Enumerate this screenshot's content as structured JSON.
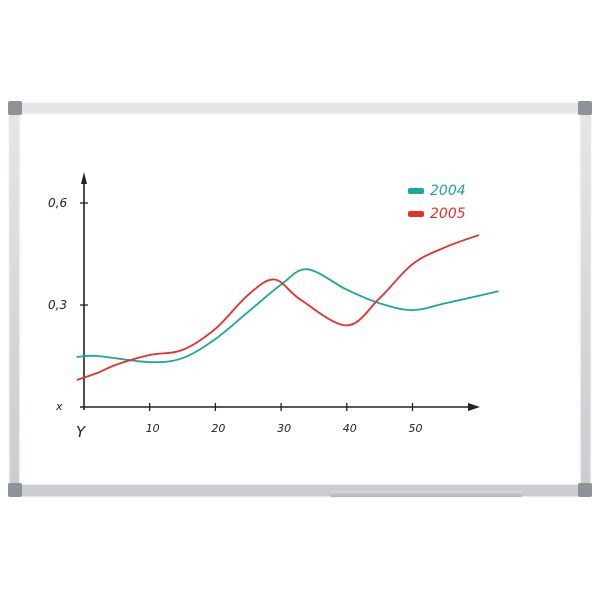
{
  "chart_data": {
    "type": "line",
    "title": "",
    "xlabel": "Y",
    "ylabel": "x",
    "xlim": [
      0,
      60
    ],
    "ylim": [
      0,
      0.6
    ],
    "x_ticks": [
      "10",
      "20",
      "30",
      "40",
      "50"
    ],
    "x_tick_values": [
      10,
      20,
      30,
      40,
      50
    ],
    "y_ticks": [
      "0,3",
      "0,6"
    ],
    "y_tick_values": [
      0.3,
      0.6
    ],
    "grid": false,
    "legend_position": "top-right",
    "series": [
      {
        "name": "2004",
        "color": "#1aa89a",
        "x": [
          -1,
          2,
          10,
          15,
          20,
          25,
          30,
          34,
          40,
          45,
          50,
          55,
          63
        ],
        "y": [
          0.147,
          0.15,
          0.132,
          0.144,
          0.2,
          0.28,
          0.36,
          0.405,
          0.345,
          0.305,
          0.285,
          0.305,
          0.34
        ]
      },
      {
        "name": "2005",
        "color": "#e8302a",
        "x": [
          -1,
          2,
          5,
          10,
          15,
          20,
          25,
          29,
          33,
          40,
          45,
          50,
          55,
          60
        ],
        "y": [
          0.08,
          0.1,
          0.125,
          0.153,
          0.168,
          0.23,
          0.33,
          0.375,
          0.315,
          0.24,
          0.32,
          0.42,
          0.47,
          0.505
        ]
      }
    ]
  }
}
